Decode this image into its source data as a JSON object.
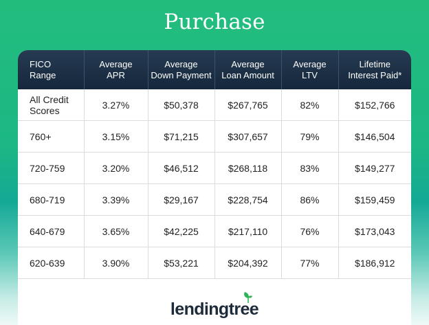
{
  "title": "Purchase",
  "table": {
    "headers": [
      [
        "FICO",
        "Range"
      ],
      [
        "Average",
        "APR"
      ],
      [
        "Average",
        "Down Payment"
      ],
      [
        "Average",
        "Loan Amount"
      ],
      [
        "Average",
        "LTV"
      ],
      [
        "Lifetime",
        "Interest Paid*"
      ]
    ],
    "rows": [
      [
        "All Credit Scores",
        "3.27%",
        "$50,378",
        "$267,765",
        "82%",
        "$152,766"
      ],
      [
        "760+",
        "3.15%",
        "$71,215",
        "$307,657",
        "79%",
        "$146,504"
      ],
      [
        "720-759",
        "3.20%",
        "$46,512",
        "$268,118",
        "83%",
        "$149,277"
      ],
      [
        "680-719",
        "3.39%",
        "$29,167",
        "$228,754",
        "86%",
        "$159,459"
      ],
      [
        "640-679",
        "3.65%",
        "$42,225",
        "$217,110",
        "76%",
        "$173,043"
      ],
      [
        "620-639",
        "3.90%",
        "$53,221",
        "$204,392",
        "77%",
        "$186,912"
      ]
    ]
  },
  "logo": {
    "text": "lendingtree",
    "icon": "leaf-icon",
    "accent": "#2fb45a"
  },
  "colors": {
    "header_bg": "#1b2e43",
    "background_top": "#22bd7d",
    "background_bottom": "#eef9f7"
  }
}
